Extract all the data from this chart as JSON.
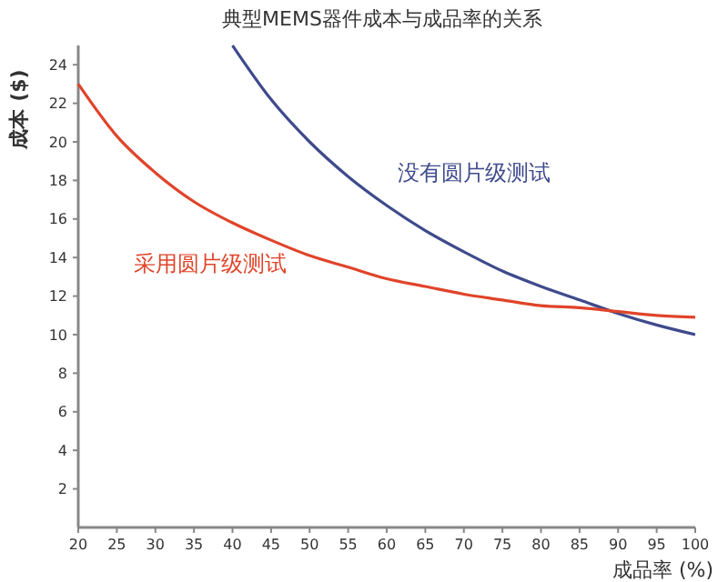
{
  "chart_data": {
    "type": "line",
    "title": "典型MEMS器件成本与成品率的关系",
    "xlabel": "成品率 (%)",
    "ylabel": "成本 ($)",
    "xlim": [
      20,
      100
    ],
    "xticks": [
      20,
      25,
      30,
      35,
      40,
      45,
      50,
      55,
      60,
      65,
      70,
      75,
      80,
      85,
      90,
      95,
      100
    ],
    "ylim": [
      0,
      25
    ],
    "yticks": [
      2,
      4,
      6,
      8,
      10,
      12,
      14,
      16,
      18,
      20,
      22,
      24
    ],
    "grid": false,
    "legend": false,
    "marker": "none",
    "line_style": "solid",
    "series": [
      {
        "name": "没有圆片级测试",
        "color": "#3f4a8c",
        "x": [
          40,
          45,
          50,
          55,
          60,
          65,
          70,
          75,
          80,
          85,
          90,
          95,
          100
        ],
        "values": [
          25,
          22.2,
          20,
          18.2,
          16.7,
          15.4,
          14.3,
          13.3,
          12.5,
          11.8,
          11.1,
          10.5,
          10
        ]
      },
      {
        "name": "采用圆片级测试",
        "color": "#e0442a",
        "x": [
          20,
          25,
          30,
          35,
          40,
          45,
          50,
          55,
          60,
          65,
          70,
          75,
          80,
          85,
          90,
          95,
          100
        ],
        "values": [
          23,
          20.3,
          18.4,
          16.9,
          15.8,
          14.9,
          14.1,
          13.5,
          12.9,
          12.5,
          12.1,
          11.8,
          11.5,
          11.4,
          11.2,
          11,
          10.9
        ]
      }
    ]
  }
}
